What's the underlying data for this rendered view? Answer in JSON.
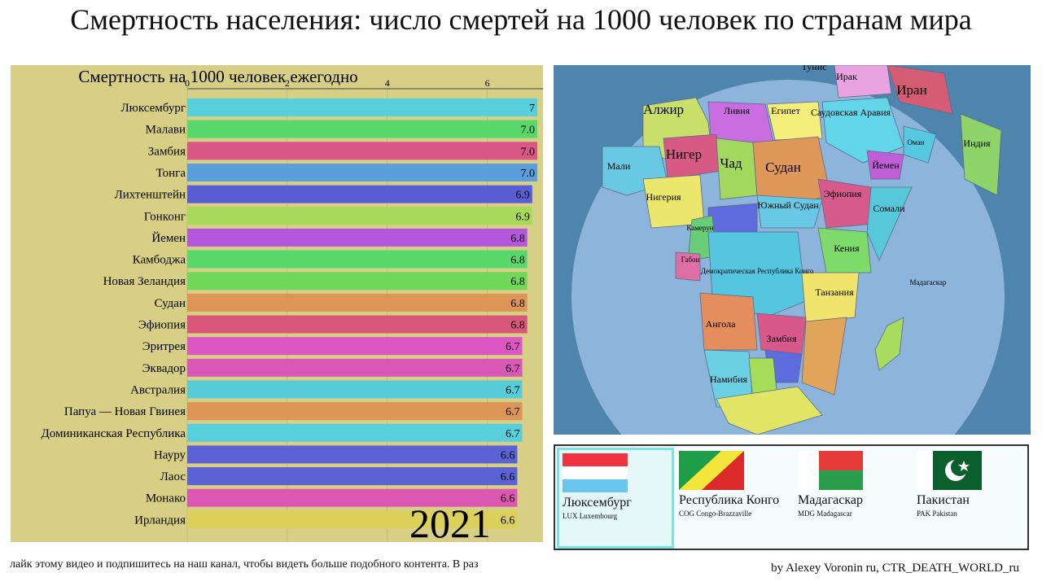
{
  "title": "Смертность населения: число смертей на 1000 человек по странам мира",
  "chart_data": {
    "type": "bar",
    "orientation": "horizontal",
    "title": "Смертность на 1000 человек ежегодно",
    "xlim": [
      0,
      7
    ],
    "xticks": [
      "0",
      "2",
      "4",
      "6"
    ],
    "year": "2021",
    "grid": true,
    "categories": [
      "Люксембург",
      "Малави",
      "Замбия",
      "Тонга",
      "Лихтенштейн",
      "Гонконг",
      "Йемен",
      "Камбоджа",
      "Новая Зеландия",
      "Судан",
      "Эфиопия",
      "Эритрея",
      "Эквадор",
      "Австралия",
      "Папуа — Новая Гвинея",
      "Доминиканская Республика",
      "Науру",
      "Лаос",
      "Монако",
      "Ирландия"
    ],
    "values": [
      7.0,
      7.0,
      7.0,
      7.0,
      6.9,
      6.9,
      6.8,
      6.8,
      6.8,
      6.8,
      6.8,
      6.7,
      6.7,
      6.7,
      6.7,
      6.7,
      6.6,
      6.6,
      6.6,
      6.6
    ],
    "value_labels": [
      "7",
      "7.0",
      "7.0",
      "7.0",
      "6.9",
      "6.9",
      "6.8",
      "6.8",
      "6.8",
      "6.8",
      "6.8",
      "6.7",
      "6.7",
      "6.7",
      "6.7",
      "6.7",
      "6.6",
      "6.6",
      "6.6",
      "6.6"
    ],
    "colors": [
      "#57d0dc",
      "#59d96c",
      "#d95784",
      "#5a9ede",
      "#5a5ed4",
      "#a9d95a",
      "#b457dc",
      "#59d96c",
      "#71d95a",
      "#dc9457",
      "#d9577a",
      "#dc57c4",
      "#d957b6",
      "#57ccd9",
      "#dc9457",
      "#57d0dc",
      "#5a62d4",
      "#5a62d4",
      "#dc57b2",
      "#dbd05a"
    ]
  },
  "map": {
    "labels": [
      "Тунис",
      "Ирак",
      "Иран",
      "Алжир",
      "Ливия",
      "Египет",
      "Саудовская Аравия",
      "Оман",
      "Индия",
      "Мали",
      "Нигер",
      "Чад",
      "Судан",
      "Йемен",
      "Нигерия",
      "Эфиопия",
      "Южный Судан",
      "Сомали",
      "Камерун",
      "Габон",
      "Демократическая Республика Конго",
      "Кения",
      "Танзания",
      "Ангола",
      "Замбия",
      "Намибия",
      "Мадагаскар"
    ]
  },
  "cards": [
    {
      "name": "Люксембург",
      "sub": "LUX Luxembourg",
      "flag": "luxembourg-flag"
    },
    {
      "name": "Республика Конго",
      "sub": "COG Congo-Brazzaville",
      "flag": "congo-flag"
    },
    {
      "name": "Мадагаскар",
      "sub": "MDG Madagascar",
      "flag": "madagascar-flag"
    },
    {
      "name": "Пакистан",
      "sub": "PAK Pakistan",
      "flag": "pakistan-flag"
    }
  ],
  "ticker": "лайк этому видео и подпишитесь на наш канал, чтобы видеть больше подобного контента. В раз",
  "credit": "by Alexey Voronin ru, CTR_DEATH_WORLD_ru",
  "colors": {
    "chart_bg": "#d8cf86",
    "ocean": "#4f85ad",
    "globe": "#8db5db",
    "card_active": "#7ce3e3"
  }
}
